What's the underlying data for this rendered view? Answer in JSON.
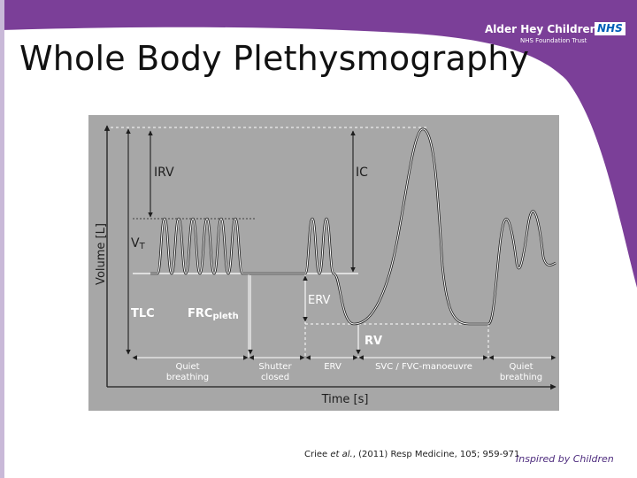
{
  "slide": {
    "title": "Whole Body Plethysmography",
    "logo": {
      "name": "Alder Hey Children's",
      "badge": "NHS",
      "trust": "NHS Foundation Trust"
    },
    "citation": {
      "authors": "Criee",
      "etal": "et al.",
      "rest": ", (2011) Resp Medicine, 105; 959-971"
    },
    "tagline": "Inspired by Children",
    "colors": {
      "brand": "#7b3f98",
      "panel": "#a7a7a7",
      "trace": "#ffffff",
      "line": "#1e1e1e"
    }
  },
  "diagram": {
    "y_axis": "Volume [L]",
    "x_axis": "Time [s]",
    "labels": {
      "irv": "IRV",
      "ic": "IC",
      "vt_main": "V",
      "vt_sub": "T",
      "tlc": "TLC",
      "frc_main": "FRC",
      "frc_sub": "pleth",
      "erv": "ERV",
      "rv": "RV"
    },
    "phases": [
      {
        "l1": "Quiet",
        "l2": "breathing"
      },
      {
        "l1": "Shutter",
        "l2": "closed"
      },
      {
        "l1": "ERV",
        "l2": ""
      },
      {
        "l1": "SVC / FVC-manoeuvre",
        "l2": ""
      },
      {
        "l1": "Quiet",
        "l2": "breathing"
      }
    ]
  }
}
